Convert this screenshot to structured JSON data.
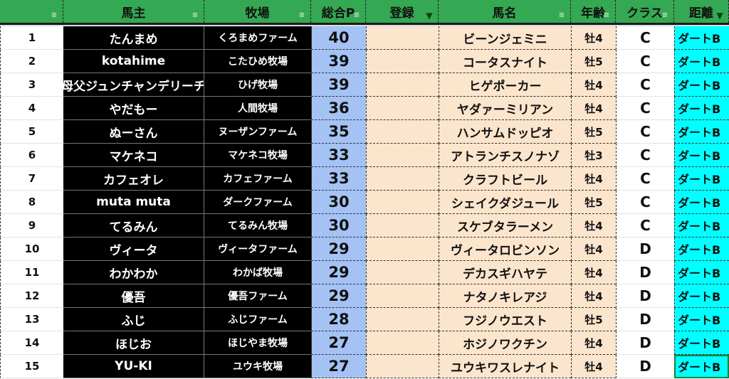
{
  "header": {
    "columns": [
      "",
      "馬主",
      "牧場",
      "総合P",
      "登録",
      "馬名",
      "年齢",
      "クラス",
      "距離"
    ],
    "filter_active": [
      false,
      false,
      false,
      false,
      true,
      false,
      false,
      false,
      true
    ]
  },
  "colors": {
    "header": "#34a853",
    "points": "#a4c2f4",
    "peach": "#fce5cd",
    "distance": "#00ffff",
    "owner_bg": "#000000"
  },
  "rows": [
    {
      "rank": "1",
      "owner": "たんまめ",
      "farm": "くろまめファーム",
      "points": "40",
      "reg": "",
      "horse": "ビーンジェミニ",
      "age": "牡4",
      "class": "C",
      "distance": "ダートB"
    },
    {
      "rank": "2",
      "owner": "kotahime",
      "farm": "こたひめ牧場",
      "points": "39",
      "reg": "",
      "horse": "コータスナイト",
      "age": "牡5",
      "class": "C",
      "distance": "ダートB"
    },
    {
      "rank": "3",
      "owner": "母父ジュンチャンデリーチ",
      "farm": "ひげ牧場",
      "points": "39",
      "reg": "",
      "horse": "ヒゲポーカー",
      "age": "牡4",
      "class": "C",
      "distance": "ダートB"
    },
    {
      "rank": "4",
      "owner": "やだもー",
      "farm": "人間牧場",
      "points": "36",
      "reg": "",
      "horse": "ヤダァーミリアン",
      "age": "牡4",
      "class": "C",
      "distance": "ダートB"
    },
    {
      "rank": "5",
      "owner": "ぬーさん",
      "farm": "ヌーザンファーム",
      "points": "35",
      "reg": "",
      "horse": "ハンサムドッピオ",
      "age": "牡5",
      "class": "C",
      "distance": "ダートB"
    },
    {
      "rank": "6",
      "owner": "マケネコ",
      "farm": "マケネコ牧場",
      "points": "33",
      "reg": "",
      "horse": "アトランチスノナゾ",
      "age": "牡3",
      "class": "C",
      "distance": "ダートB"
    },
    {
      "rank": "7",
      "owner": "カフェオレ",
      "farm": "カフェファーム",
      "points": "33",
      "reg": "",
      "horse": "クラフトビール",
      "age": "牡4",
      "class": "C",
      "distance": "ダートB"
    },
    {
      "rank": "8",
      "owner": "muta muta",
      "farm": "ダークファーム",
      "points": "30",
      "reg": "",
      "horse": "シェイクダジュール",
      "age": "牡5",
      "class": "C",
      "distance": "ダートB"
    },
    {
      "rank": "9",
      "owner": "てるみん",
      "farm": "てるみん牧場",
      "points": "30",
      "reg": "",
      "horse": "スケブタラーメン",
      "age": "牡4",
      "class": "C",
      "distance": "ダートB"
    },
    {
      "rank": "10",
      "owner": "ヴィータ",
      "farm": "ヴィータファーム",
      "points": "29",
      "reg": "",
      "horse": "ヴィータロビンソン",
      "age": "牡4",
      "class": "D",
      "distance": "ダートB"
    },
    {
      "rank": "11",
      "owner": "わかわか",
      "farm": "わかば牧場",
      "points": "29",
      "reg": "",
      "horse": "デカスギハヤテ",
      "age": "牡4",
      "class": "D",
      "distance": "ダートB"
    },
    {
      "rank": "12",
      "owner": "優吾",
      "farm": "優吾ファーム",
      "points": "29",
      "reg": "",
      "horse": "ナタノキレアジ",
      "age": "牡4",
      "class": "D",
      "distance": "ダートB"
    },
    {
      "rank": "13",
      "owner": "ふじ",
      "farm": "ふじファーム",
      "points": "28",
      "reg": "",
      "horse": "フジノウエスト",
      "age": "牡5",
      "class": "D",
      "distance": "ダートB"
    },
    {
      "rank": "14",
      "owner": "ほじお",
      "farm": "ほじやま牧場",
      "points": "27",
      "reg": "",
      "horse": "ホジノワクチン",
      "age": "牡4",
      "class": "D",
      "distance": "ダートB"
    },
    {
      "rank": "15",
      "owner": "YU-KI",
      "farm": "ユウキ牧場",
      "points": "27",
      "reg": "",
      "horse": "ユウキワスレナイト",
      "age": "牡4",
      "class": "D",
      "distance": "ダートB"
    }
  ]
}
